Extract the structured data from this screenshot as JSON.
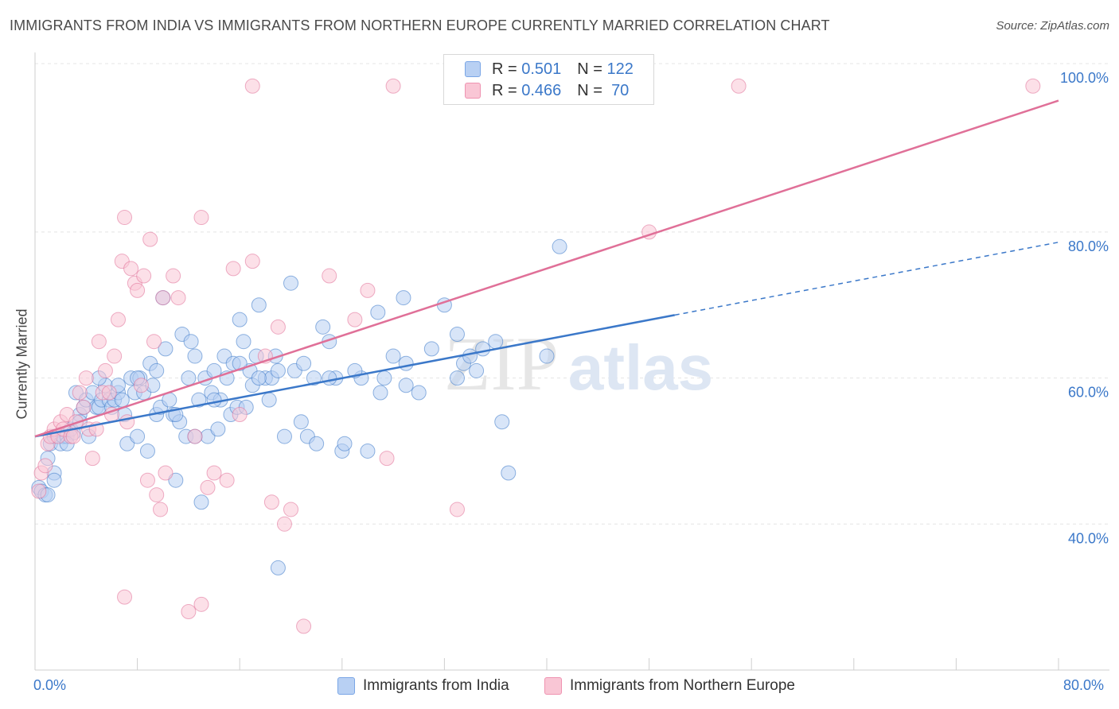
{
  "title": "IMMIGRANTS FROM INDIA VS IMMIGRANTS FROM NORTHERN EUROPE CURRENTLY MARRIED CORRELATION CHART",
  "source": "Source: ZipAtlas.com",
  "watermark": {
    "zip": "ZIP",
    "atlas": "atlas"
  },
  "legend": {
    "r_label": "R =",
    "n_label": "N =",
    "rows": [
      {
        "r": "0.501",
        "n": "122",
        "fill": "#b8d0f3",
        "stroke": "#7aa6e6"
      },
      {
        "r": "0.466",
        "n": "70",
        "fill": "#f9c6d5",
        "stroke": "#ef93b1"
      }
    ]
  },
  "chart_data": {
    "type": "scatter",
    "xlabel": "",
    "ylabel": "Currently Married",
    "xlim": [
      0,
      80
    ],
    "ylim": [
      20,
      100
    ],
    "x_tick_labels": [
      "0.0%",
      "80.0%"
    ],
    "y_ticks": [
      40,
      60,
      80,
      100
    ],
    "y_tick_labels": [
      "40.0%",
      "60.0%",
      "80.0%",
      "100.0%"
    ],
    "grid": true,
    "legend_position": "top-center",
    "series": [
      {
        "name": "Immigrants from India",
        "color": "#3b78c9",
        "fill": "#b8d0f3",
        "trend": {
          "x0": 0,
          "y0": 52.0,
          "x1": 80,
          "y1": 78.6,
          "solid_until": 50
        },
        "points": [
          [
            0.3,
            45
          ],
          [
            0.5,
            44.5
          ],
          [
            0.8,
            44
          ],
          [
            1,
            49
          ],
          [
            1.2,
            51
          ],
          [
            1.5,
            52
          ],
          [
            1.5,
            47
          ],
          [
            2,
            51
          ],
          [
            2.2,
            52
          ],
          [
            2.5,
            52
          ],
          [
            2.8,
            53
          ],
          [
            3,
            52.5
          ],
          [
            3.2,
            58
          ],
          [
            3.5,
            55
          ],
          [
            3.8,
            56
          ],
          [
            4,
            57
          ],
          [
            4.2,
            52
          ],
          [
            4.5,
            58
          ],
          [
            4.8,
            56
          ],
          [
            5,
            56
          ],
          [
            5.2,
            57
          ],
          [
            5.5,
            59
          ],
          [
            5.8,
            57
          ],
          [
            6,
            56
          ],
          [
            6.2,
            57
          ],
          [
            6.5,
            58
          ],
          [
            6.8,
            57
          ],
          [
            7,
            55
          ],
          [
            7.2,
            51
          ],
          [
            7.5,
            60
          ],
          [
            7.8,
            58
          ],
          [
            8,
            52
          ],
          [
            8.2,
            60
          ],
          [
            8.5,
            58
          ],
          [
            8.8,
            50
          ],
          [
            9,
            62
          ],
          [
            9.2,
            59
          ],
          [
            9.5,
            55
          ],
          [
            9.8,
            56
          ],
          [
            10,
            71
          ],
          [
            10.2,
            64
          ],
          [
            10.5,
            57
          ],
          [
            10.8,
            55
          ],
          [
            11,
            46
          ],
          [
            11.3,
            54
          ],
          [
            11.5,
            66
          ],
          [
            11.8,
            52
          ],
          [
            12,
            60
          ],
          [
            12.2,
            65
          ],
          [
            12.5,
            63
          ],
          [
            12.8,
            57
          ],
          [
            13,
            43
          ],
          [
            13.3,
            60
          ],
          [
            13.5,
            52
          ],
          [
            13.8,
            58
          ],
          [
            14,
            61
          ],
          [
            14.3,
            53
          ],
          [
            14.5,
            57
          ],
          [
            14.8,
            63
          ],
          [
            15,
            60
          ],
          [
            15.3,
            55
          ],
          [
            15.5,
            62
          ],
          [
            15.8,
            56
          ],
          [
            16,
            68
          ],
          [
            16.3,
            65
          ],
          [
            16.5,
            56
          ],
          [
            16.8,
            61
          ],
          [
            17,
            59
          ],
          [
            17.3,
            63
          ],
          [
            17.5,
            70
          ],
          [
            18,
            60
          ],
          [
            18.3,
            57
          ],
          [
            18.5,
            60
          ],
          [
            18.8,
            63
          ],
          [
            19,
            34
          ],
          [
            19.5,
            52
          ],
          [
            20,
            73
          ],
          [
            20.3,
            61
          ],
          [
            20.8,
            54
          ],
          [
            21.3,
            52
          ],
          [
            21.8,
            60
          ],
          [
            22,
            51
          ],
          [
            22.5,
            67
          ],
          [
            23,
            65
          ],
          [
            23.5,
            60
          ],
          [
            24,
            50
          ],
          [
            24.2,
            51
          ],
          [
            25.5,
            60
          ],
          [
            26,
            50
          ],
          [
            26.8,
            69
          ],
          [
            27.3,
            60
          ],
          [
            28,
            63
          ],
          [
            28.8,
            71
          ],
          [
            29,
            59
          ],
          [
            30,
            58
          ],
          [
            32,
            70
          ],
          [
            33,
            60
          ],
          [
            33.5,
            62
          ],
          [
            34,
            63
          ],
          [
            34.5,
            61
          ],
          [
            35,
            64
          ],
          [
            36,
            65
          ],
          [
            36.5,
            54
          ],
          [
            37,
            47
          ],
          [
            40,
            63
          ],
          [
            41,
            78
          ],
          [
            1,
            44
          ],
          [
            1.5,
            46
          ],
          [
            2.5,
            51
          ],
          [
            3.5,
            54
          ],
          [
            5,
            60
          ],
          [
            6.5,
            59
          ],
          [
            8,
            60
          ],
          [
            9.5,
            61
          ],
          [
            11,
            55
          ],
          [
            12.5,
            52
          ],
          [
            14,
            57
          ],
          [
            16,
            62
          ],
          [
            17.5,
            60
          ],
          [
            19,
            61
          ],
          [
            21,
            62
          ],
          [
            23,
            60
          ],
          [
            25,
            61
          ],
          [
            27,
            58
          ],
          [
            29,
            62
          ],
          [
            31,
            64
          ],
          [
            33,
            66
          ]
        ]
      },
      {
        "name": "Immigrants from Northern Europe",
        "color": "#e07098",
        "fill": "#f9c6d5",
        "trend": {
          "x0": 0,
          "y0": 52.0,
          "x1": 80,
          "y1": 98.0,
          "solid_until": 80
        },
        "points": [
          [
            0.3,
            44.5
          ],
          [
            0.5,
            47
          ],
          [
            0.8,
            48
          ],
          [
            1,
            51
          ],
          [
            1.2,
            52
          ],
          [
            1.5,
            53
          ],
          [
            1.8,
            52
          ],
          [
            2,
            54
          ],
          [
            2.2,
            53
          ],
          [
            2.5,
            55
          ],
          [
            2.8,
            52
          ],
          [
            3,
            52
          ],
          [
            3.2,
            54
          ],
          [
            3.5,
            58
          ],
          [
            3.8,
            56
          ],
          [
            4,
            60
          ],
          [
            4.2,
            53
          ],
          [
            4.5,
            49
          ],
          [
            4.8,
            53
          ],
          [
            5,
            65
          ],
          [
            5.3,
            58
          ],
          [
            5.5,
            61
          ],
          [
            5.8,
            58
          ],
          [
            6,
            55
          ],
          [
            6.2,
            63
          ],
          [
            6.5,
            68
          ],
          [
            6.8,
            76
          ],
          [
            7,
            82
          ],
          [
            7.2,
            54
          ],
          [
            7.5,
            75
          ],
          [
            7.8,
            73
          ],
          [
            8,
            72
          ],
          [
            8.3,
            59
          ],
          [
            8.5,
            74
          ],
          [
            8.8,
            46
          ],
          [
            9,
            79
          ],
          [
            9.3,
            65
          ],
          [
            9.5,
            44
          ],
          [
            9.8,
            42
          ],
          [
            10,
            71
          ],
          [
            10.2,
            47
          ],
          [
            10.8,
            74
          ],
          [
            11.2,
            71
          ],
          [
            12,
            28
          ],
          [
            12.5,
            52
          ],
          [
            13,
            82
          ],
          [
            13.5,
            45
          ],
          [
            14,
            47
          ],
          [
            15,
            46
          ],
          [
            15.5,
            75
          ],
          [
            16,
            55
          ],
          [
            17,
            76
          ],
          [
            18,
            63
          ],
          [
            18.5,
            43
          ],
          [
            19,
            67
          ],
          [
            19.5,
            40
          ],
          [
            20,
            42
          ],
          [
            21,
            26
          ],
          [
            23,
            74
          ],
          [
            25,
            68
          ],
          [
            26,
            72
          ],
          [
            27.5,
            49
          ],
          [
            28,
            100
          ],
          [
            33,
            42
          ],
          [
            55,
            100
          ],
          [
            78,
            100
          ],
          [
            17,
            100
          ],
          [
            48,
            80
          ],
          [
            7,
            30
          ],
          [
            13,
            29
          ]
        ]
      }
    ]
  }
}
